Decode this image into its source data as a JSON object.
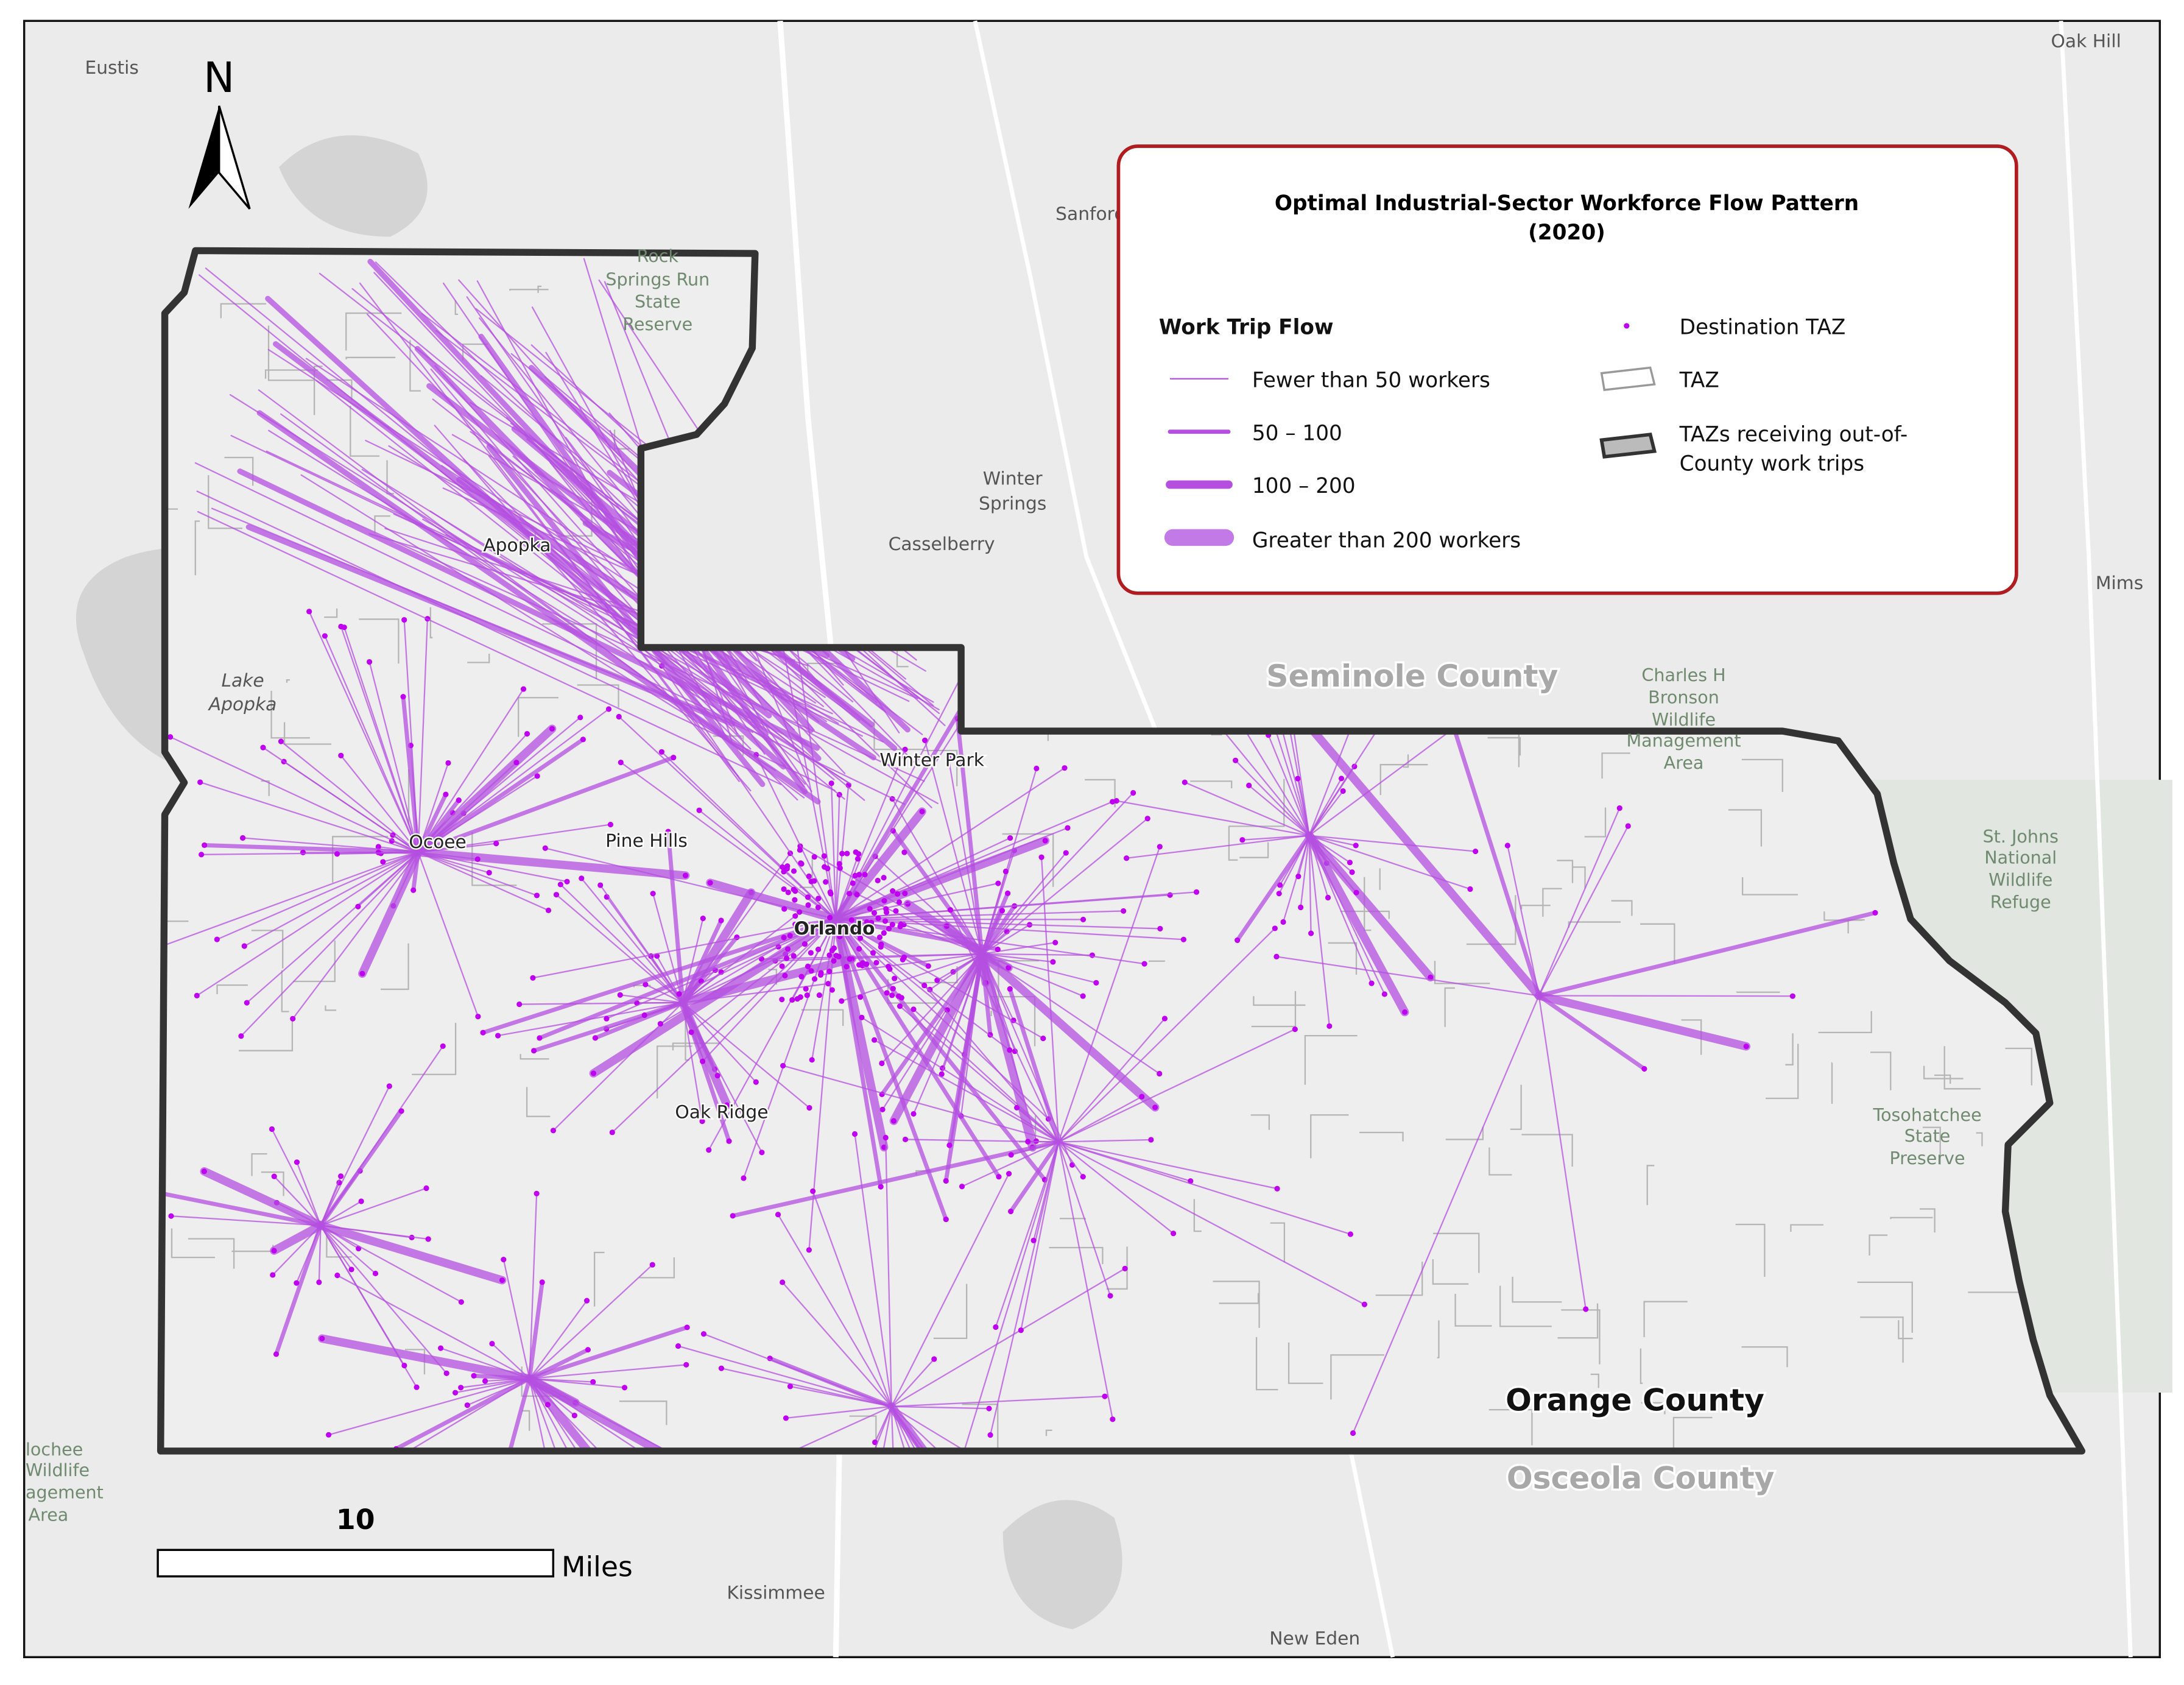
{
  "north_arrow": "N",
  "places": [
    "Eustis",
    "Oak Hill",
    "Sanford",
    [
      "Winter",
      "Springs"
    ],
    "Casselberry",
    "Mims",
    [
      "Lake",
      "Apopka"
    ],
    "Apopka",
    "Winter Park",
    "Ocoee",
    "Pine Hills",
    "Orlando",
    "Oak Ridge",
    "Kissimmee",
    "New Eden"
  ],
  "parks": [
    [
      "Rock",
      "Springs Run",
      "State",
      "Reserve"
    ],
    [
      "Charles H",
      "Bronson",
      "Wildlife",
      "Management",
      "Area"
    ],
    [
      "St. Johns",
      "National",
      "Wildlife",
      "Refuge"
    ],
    [
      "Tosohatchee",
      "State",
      "Preserve"
    ],
    [
      "lochee",
      "Wildlife",
      "agement",
      "Area"
    ]
  ],
  "counties": [
    "Seminole County",
    "Orange County",
    "Osceola County"
  ],
  "legend": {
    "title": [
      "Optimal Industrial-Sector Workforce Flow Pattern",
      "(2020)"
    ],
    "heading": "Work Trip Flow",
    "flows": [
      "Fewer than 50 workers",
      "50 – 100",
      "100 – 200",
      "Greater than 200 workers"
    ],
    "symbols": [
      "Destination TAZ",
      "TAZ",
      [
        "TAZs receiving out-of-",
        "County work trips"
      ]
    ]
  },
  "scale_bar": {
    "distance": 10,
    "unit": "Miles"
  }
}
